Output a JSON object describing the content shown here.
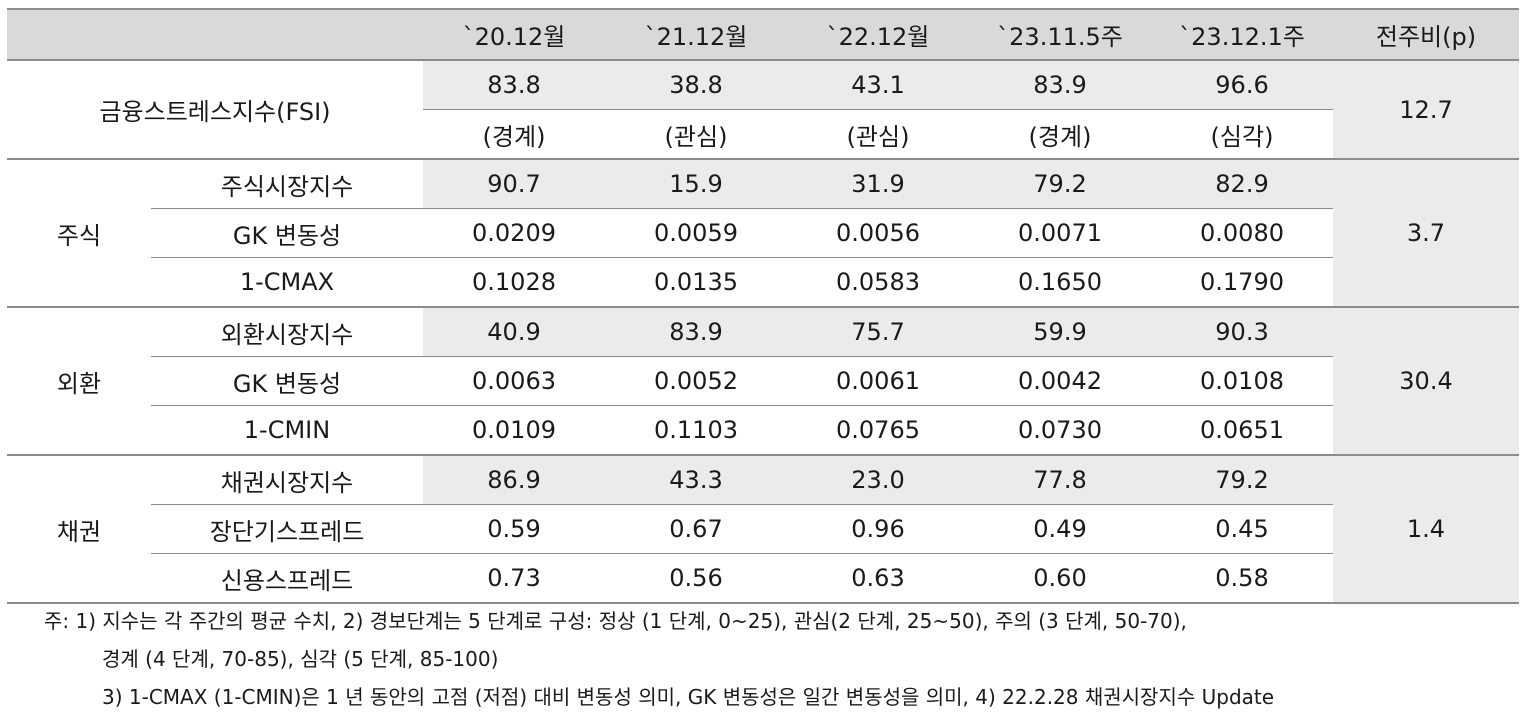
{
  "header": {
    "c0": "",
    "c1": "`20.12월",
    "c2": "`21.12월",
    "c3": "`22.12월",
    "c4": "`23.11.5주",
    "c5": "`23.12.1주",
    "c6": "전주비(p)"
  },
  "fsi": {
    "label": "금융스트레스지수(FSI)",
    "values": [
      "83.8",
      "38.8",
      "43.1",
      "83.9",
      "96.6"
    ],
    "levels": [
      "(경계)",
      "(관심)",
      "(관심)",
      "(경계)",
      "(심각)"
    ],
    "change": "12.7"
  },
  "groups": [
    {
      "name": "주식",
      "change": "3.7",
      "rows": [
        {
          "label": "주식시장지수",
          "values": [
            "90.7",
            "15.9",
            "31.9",
            "79.2",
            "82.9"
          ]
        },
        {
          "label": "GK 변동성",
          "values": [
            "0.0209",
            "0.0059",
            "0.0056",
            "0.0071",
            "0.0080"
          ]
        },
        {
          "label": "1-CMAX",
          "values": [
            "0.1028",
            "0.0135",
            "0.0583",
            "0.1650",
            "0.1790"
          ]
        }
      ]
    },
    {
      "name": "외환",
      "change": "30.4",
      "rows": [
        {
          "label": "외환시장지수",
          "values": [
            "40.9",
            "83.9",
            "75.7",
            "59.9",
            "90.3"
          ]
        },
        {
          "label": "GK 변동성",
          "values": [
            "0.0063",
            "0.0052",
            "0.0061",
            "0.0042",
            "0.0108"
          ]
        },
        {
          "label": "1-CMIN",
          "values": [
            "0.0109",
            "0.1103",
            "0.0765",
            "0.0730",
            "0.0651"
          ]
        }
      ]
    },
    {
      "name": "채권",
      "change": "1.4",
      "rows": [
        {
          "label": "채권시장지수",
          "values": [
            "86.9",
            "43.3",
            "23.0",
            "77.8",
            "79.2"
          ]
        },
        {
          "label": "장단기스프레드",
          "values": [
            "0.59",
            "0.67",
            "0.96",
            "0.49",
            "0.45"
          ]
        },
        {
          "label": "신용스프레드",
          "values": [
            "0.73",
            "0.56",
            "0.63",
            "0.60",
            "0.58"
          ]
        }
      ]
    }
  ],
  "notes": [
    "주: 1) 지수는 각 주간의 평균 수치, 2) 경보단계는 5 단계로 구성: 정상 (1 단계, 0~25), 관심(2 단계, 25~50), 주의 (3 단계, 50-70),",
    "경계 (4 단계, 70-85), 심각 (5 단계, 85-100)",
    "3) 1-CMAX (1-CMIN)은 1 년 동안의 고점 (저점) 대비 변동성 의미, GK 변동성은 일간 변동성을 의미, 4) 22.2.28 채권시장지수 Update"
  ]
}
